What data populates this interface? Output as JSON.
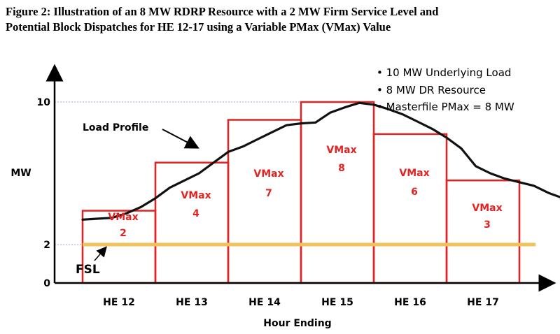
{
  "figure": {
    "title_line1": "Figure 2: Illustration of an 8 MW RDRP Resource with a 2 MW Firm Service Level and",
    "title_line2": "Potential Block Dispatches for HE 12-17 using a Variable PMax (VMax) Value"
  },
  "colors": {
    "block": "#e32222",
    "fsl_line": "#f1c15a",
    "load": "#111111",
    "axis": "#000000",
    "ref_dotted": "#9aa9c9"
  },
  "chart_data": {
    "type": "bar",
    "xlabel": "Hour Ending",
    "ylabel": "MW",
    "ylim": [
      0,
      10
    ],
    "yticks": [
      "0",
      "2",
      "10"
    ],
    "categories": [
      "HE 12",
      "HE 13",
      "HE 14",
      "HE 15",
      "HE 16",
      "HE 17"
    ],
    "series": [
      {
        "kind": "block",
        "values": [
          3.9,
          6.6,
          9.0,
          10.0,
          8.2,
          5.6
        ],
        "labels": [
          [
            "VMax",
            "2"
          ],
          [
            "VMax",
            "4"
          ],
          [
            "VMax",
            "7"
          ],
          [
            "VMax",
            "8"
          ],
          [
            "VMax",
            "6"
          ],
          [
            "VMax",
            "3"
          ]
        ]
      },
      {
        "kind": "load_profile",
        "points": [
          [
            11.5,
            3.4
          ],
          [
            11.7,
            3.45
          ],
          [
            11.9,
            3.5
          ],
          [
            12.1,
            3.75
          ],
          [
            12.3,
            4.1
          ],
          [
            12.5,
            4.6
          ],
          [
            12.7,
            5.2
          ],
          [
            12.9,
            5.6
          ],
          [
            13.1,
            6.0
          ],
          [
            13.3,
            6.6
          ],
          [
            13.5,
            7.2
          ],
          [
            13.7,
            7.5
          ],
          [
            13.9,
            7.9
          ],
          [
            14.1,
            8.3
          ],
          [
            14.3,
            8.7
          ],
          [
            14.5,
            8.8
          ],
          [
            14.7,
            8.85
          ],
          [
            14.9,
            9.4
          ],
          [
            15.1,
            9.7
          ],
          [
            15.3,
            9.95
          ],
          [
            15.5,
            9.85
          ],
          [
            15.7,
            9.6
          ],
          [
            15.9,
            9.3
          ],
          [
            16.1,
            8.9
          ],
          [
            16.3,
            8.5
          ],
          [
            16.5,
            8.0
          ],
          [
            16.7,
            7.4
          ],
          [
            16.9,
            6.4
          ],
          [
            17.1,
            6.0
          ],
          [
            17.3,
            5.7
          ],
          [
            17.5,
            5.5
          ],
          [
            17.7,
            5.3
          ],
          [
            17.9,
            4.9
          ],
          [
            18.1,
            4.6
          ],
          [
            18.2,
            4.3
          ]
        ]
      },
      {
        "kind": "fsl",
        "value": 2
      }
    ],
    "annotations": {
      "load_profile": "Load Profile",
      "fsl": "FSL"
    },
    "legend": {
      "position": "top-right",
      "items": [
        "• 10 MW Underlying Load",
        "• 8 MW DR Resource",
        "• Masterfile PMax = 8 MW"
      ]
    }
  }
}
